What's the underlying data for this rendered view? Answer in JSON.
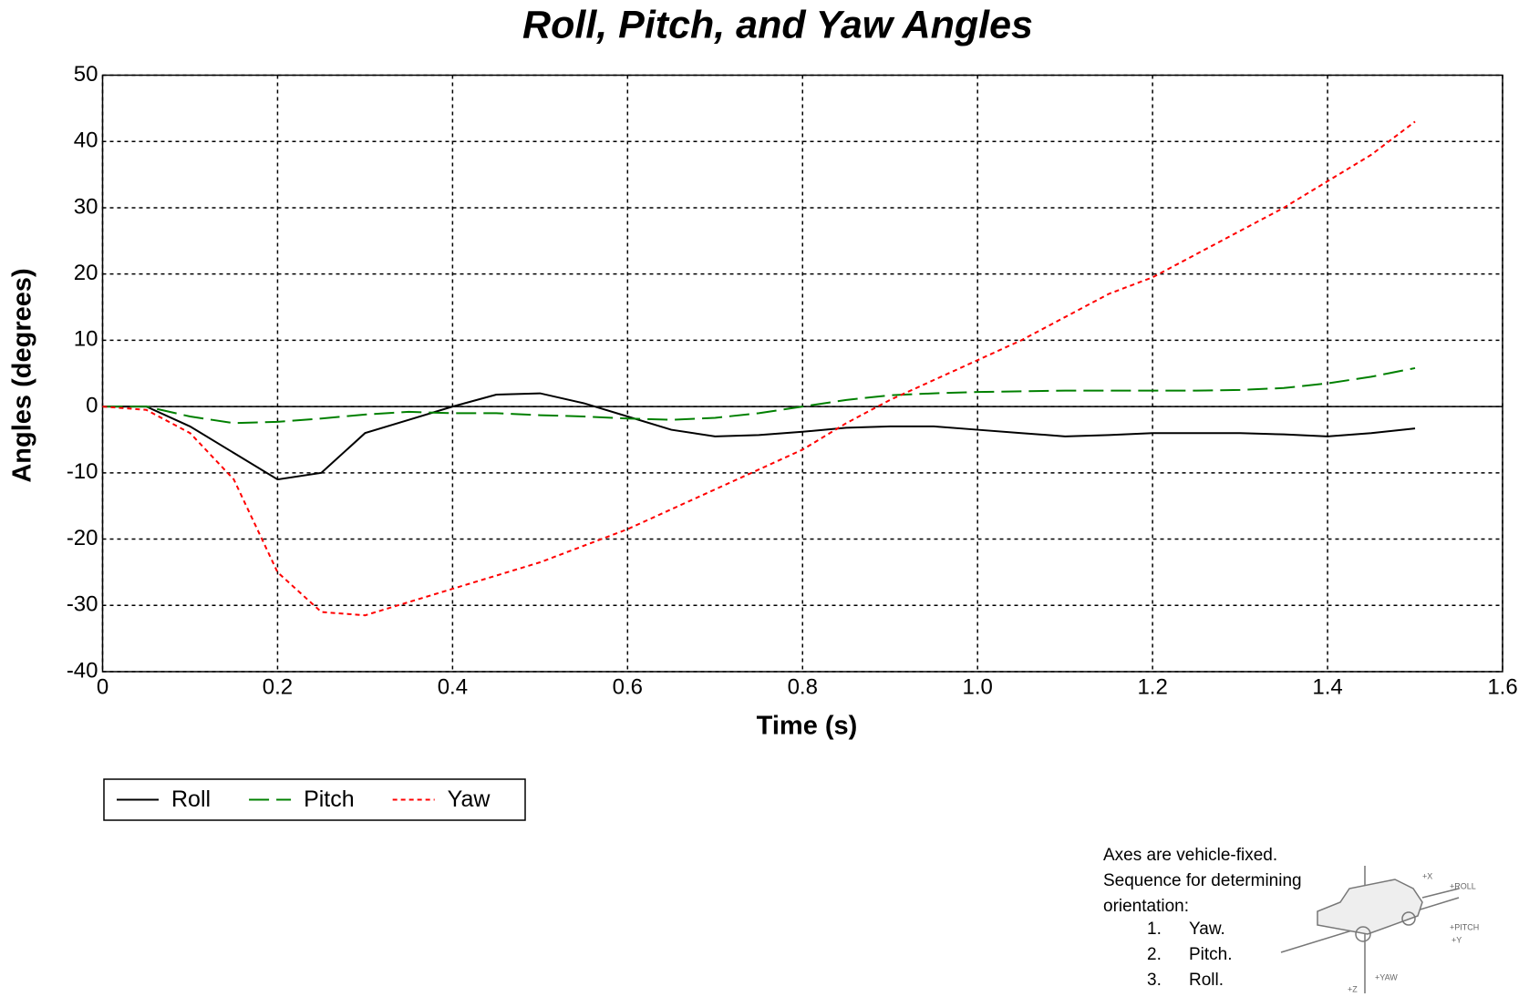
{
  "chart_data": {
    "type": "line",
    "title": "Roll, Pitch, and Yaw Angles",
    "xlabel": "Time (s)",
    "ylabel": "Angles (degrees)",
    "x": [
      0,
      0.05,
      0.1,
      0.15,
      0.2,
      0.25,
      0.3,
      0.35,
      0.4,
      0.45,
      0.5,
      0.55,
      0.6,
      0.65,
      0.7,
      0.75,
      0.8,
      0.85,
      0.9,
      0.95,
      1.0,
      1.05,
      1.1,
      1.15,
      1.2,
      1.25,
      1.3,
      1.35,
      1.4,
      1.45,
      1.5
    ],
    "series": [
      {
        "name": "Roll",
        "color": "#000000",
        "dash": "none",
        "values": [
          0,
          0,
          -3,
          -7,
          -11,
          -10,
          -4,
          -2,
          0,
          1.8,
          2,
          0.5,
          -1.5,
          -3.5,
          -4.5,
          -4.3,
          -3.8,
          -3.2,
          -3,
          -3,
          -3.5,
          -4,
          -4.5,
          -4.3,
          -4,
          -4,
          -4,
          -4.2,
          -4.5,
          -4,
          -3.3
        ]
      },
      {
        "name": "Pitch",
        "color": "#008000",
        "dash": "22 8",
        "values": [
          0,
          0,
          -1.5,
          -2.5,
          -2.3,
          -1.8,
          -1.2,
          -0.8,
          -1,
          -1,
          -1.3,
          -1.5,
          -1.8,
          -2,
          -1.7,
          -1,
          0,
          1,
          1.7,
          2,
          2.2,
          2.3,
          2.4,
          2.4,
          2.4,
          2.4,
          2.5,
          2.8,
          3.5,
          4.5,
          5.8
        ]
      },
      {
        "name": "Yaw",
        "color": "#ff0000",
        "dash": "5 4",
        "values": [
          0,
          -0.5,
          -4,
          -11,
          -25,
          -31,
          -31.5,
          -29.5,
          -27.5,
          -25.5,
          -23.5,
          -21,
          -18.5,
          -15.5,
          -12.5,
          -9.5,
          -6.5,
          -2.5,
          1,
          4,
          7,
          10,
          13.5,
          17,
          19.5,
          23,
          26.5,
          30,
          34,
          38,
          43
        ]
      }
    ],
    "xlim": [
      0,
      1.6
    ],
    "xticks": [
      0,
      0.2,
      0.4,
      0.6,
      0.8,
      {
        "value": 1,
        "label": "1.0"
      },
      1.2,
      1.4,
      1.6
    ],
    "ylim": [
      -40,
      50
    ],
    "yticks": [
      -40,
      -30,
      -20,
      -10,
      0,
      10,
      20,
      30,
      40,
      50
    ],
    "grid": true,
    "legend": "bottom-left"
  },
  "note": {
    "lines": [
      "Axes are vehicle-fixed.",
      "Sequence for determining",
      "orientation:"
    ],
    "steps": [
      {
        "number": "1.",
        "text": "Yaw."
      },
      {
        "number": "2.",
        "text": "Pitch."
      },
      {
        "number": "3.",
        "text": "Roll."
      }
    ],
    "diagram_labels": [
      "+X",
      "+ROLL",
      "+PITCH",
      "+Y",
      "+Z",
      "+YAW"
    ]
  }
}
